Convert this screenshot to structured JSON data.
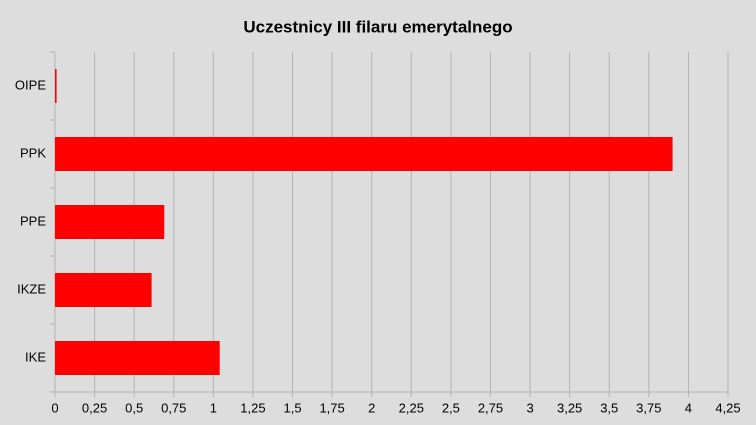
{
  "chart_data": {
    "type": "bar",
    "orientation": "horizontal",
    "title": "Uczestnicy III filaru emerytalnego",
    "categories": [
      "OIPE",
      "PPK",
      "PPE",
      "IKZE",
      "IKE"
    ],
    "values": [
      0.01,
      3.9,
      0.69,
      0.61,
      1.04
    ],
    "color": "#ff0000",
    "xlim": [
      0,
      4.25
    ],
    "xticks": [
      0,
      {
        "value": 0.25,
        "label": "0,25"
      },
      {
        "value": 0.5,
        "label": "0,5"
      },
      {
        "value": 0.75,
        "label": "0,75"
      },
      1,
      {
        "value": 1.25,
        "label": "1,25"
      },
      {
        "value": 1.5,
        "label": "1,5"
      },
      {
        "value": 1.75,
        "label": "1,75"
      },
      2,
      {
        "value": 2.25,
        "label": "2,25"
      },
      {
        "value": 2.5,
        "label": "2,5"
      },
      {
        "value": 2.75,
        "label": "2,75"
      },
      3,
      {
        "value": 3.25,
        "label": "3,25"
      },
      {
        "value": 3.5,
        "label": "3,5"
      },
      {
        "value": 3.75,
        "label": "3,75"
      },
      4,
      {
        "value": 4.25,
        "label": "4,25"
      }
    ],
    "grid": true
  }
}
